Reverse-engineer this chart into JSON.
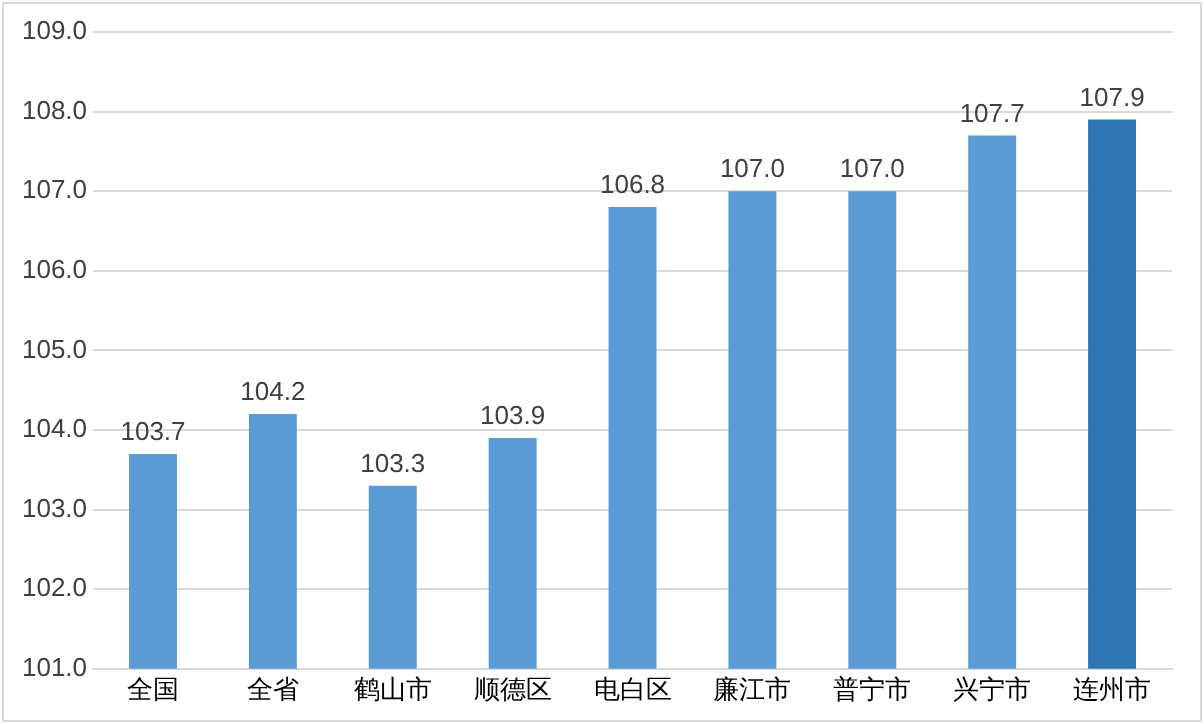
{
  "chart_data": {
    "type": "bar",
    "categories": [
      "全国",
      "全省",
      "鹤山市",
      "顺德区",
      "电白区",
      "廉江市",
      "普宁市",
      "兴宁市",
      "连州市"
    ],
    "values": [
      103.7,
      104.2,
      103.3,
      103.9,
      106.8,
      107.0,
      107.0,
      107.7,
      107.9
    ],
    "value_labels": [
      "103.7",
      "104.2",
      "103.3",
      "103.9",
      "106.8",
      "107.0",
      "107.0",
      "107.7",
      "107.9"
    ],
    "colors": [
      "#5b9bd5",
      "#5b9bd5",
      "#5b9bd5",
      "#5b9bd5",
      "#5b9bd5",
      "#5b9bd5",
      "#5b9bd5",
      "#5b9bd5",
      "#2e75b6"
    ],
    "ylim": [
      101,
      109
    ],
    "yticks": [
      {
        "value": 101,
        "label": "101.0"
      },
      {
        "value": 102,
        "label": "102.0"
      },
      {
        "value": 103,
        "label": "103.0"
      },
      {
        "value": 104,
        "label": "104.0"
      },
      {
        "value": 105,
        "label": "105.0"
      },
      {
        "value": 106,
        "label": "106.0"
      },
      {
        "value": 107,
        "label": "107.0"
      },
      {
        "value": 108,
        "label": "108.0"
      },
      {
        "value": 109,
        "label": "109.0"
      }
    ],
    "grid": "y",
    "legend": false
  }
}
